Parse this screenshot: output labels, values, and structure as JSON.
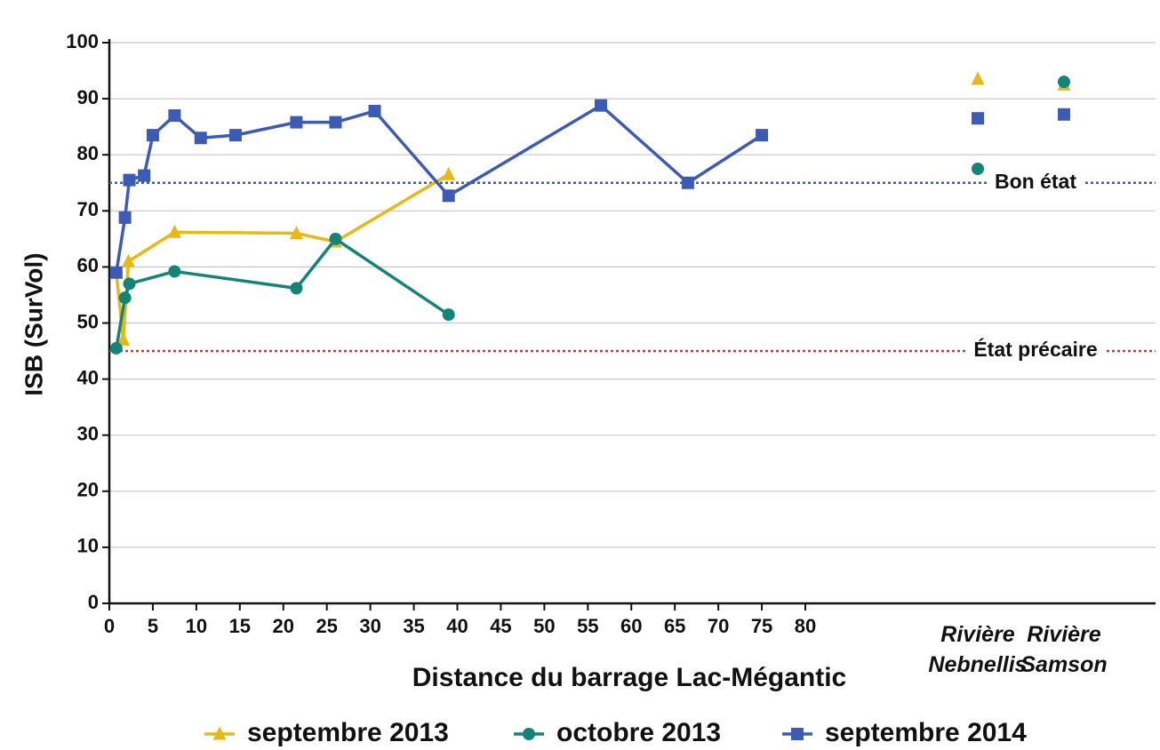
{
  "chart_data": {
    "type": "line",
    "y_label": "ISB (SurVol)",
    "x_label": "Distance du barrage Lac-Mégantic",
    "xlim": [
      0,
      80
    ],
    "xticks": [
      0,
      5,
      10,
      15,
      20,
      25,
      30,
      35,
      40,
      45,
      50,
      55,
      60,
      65,
      70,
      75,
      80
    ],
    "ylim": [
      0,
      100
    ],
    "yticks": [
      0,
      10,
      20,
      30,
      40,
      50,
      60,
      70,
      80,
      90,
      100
    ],
    "grid": true,
    "extra_categories": [
      "Rivière Nebnellis",
      "Rivière Samson"
    ],
    "reference_lines": [
      {
        "value": 75,
        "label": "Bon état",
        "color": "#3c5bb5"
      },
      {
        "value": 45,
        "label": "État précaire",
        "color": "#e0302a"
      }
    ],
    "series": [
      {
        "name": "septembre 2013",
        "color": "#e8b817",
        "marker": "triangle",
        "x": [
          0.8,
          1.6,
          2.2,
          7.5,
          21.5,
          26,
          39
        ],
        "values": [
          59,
          47,
          61,
          66.2,
          66,
          64.5,
          76.5
        ],
        "extra_values": [
          93.5,
          92.5
        ]
      },
      {
        "name": "octobre 2013",
        "color": "#138478",
        "marker": "circle",
        "x": [
          0.8,
          1.8,
          2.3,
          7.5,
          21.5,
          26,
          39
        ],
        "values": [
          45.5,
          54.5,
          57,
          59.2,
          56.2,
          65,
          51.5
        ],
        "extra_values": [
          77.5,
          93
        ]
      },
      {
        "name": "septembre 2014",
        "color": "#3c5bb5",
        "marker": "square",
        "x": [
          0.8,
          1.8,
          2.3,
          4,
          5,
          7.5,
          10.5,
          14.5,
          21.5,
          26,
          30.5,
          39,
          56.5,
          66.5,
          75
        ],
        "values": [
          59,
          68.8,
          75.5,
          76.3,
          83.5,
          87,
          83,
          83.5,
          85.8,
          85.8,
          87.8,
          72.7,
          88.8,
          75,
          83.5
        ],
        "extra_values": [
          86.5,
          87.2
        ]
      }
    ]
  }
}
